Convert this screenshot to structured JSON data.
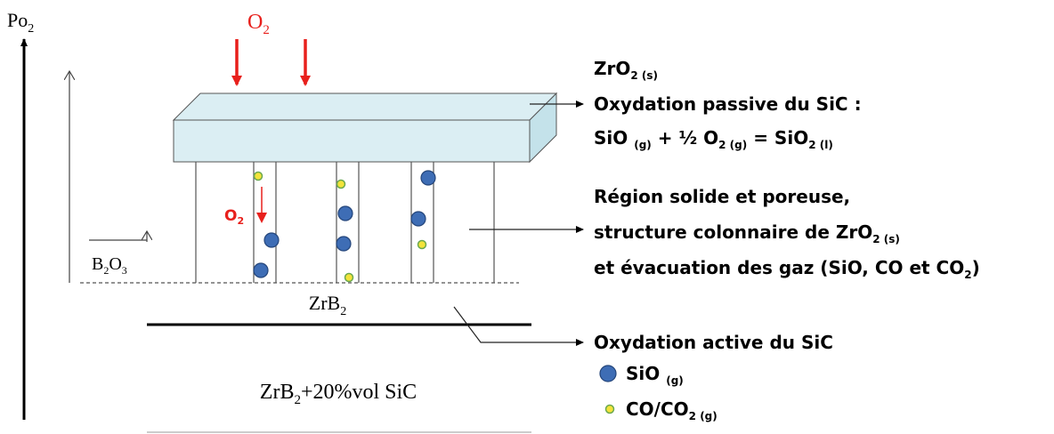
{
  "axis_label": [
    {
      "t": "Po"
    },
    {
      "t": "2",
      "sub": true
    }
  ],
  "oxygen_label": [
    {
      "t": "O"
    },
    {
      "t": "2",
      "sub": true
    }
  ],
  "inner_oxygen_label": [
    {
      "t": "O"
    },
    {
      "t": "2",
      "sub": true
    }
  ],
  "b2o3_label": [
    {
      "t": "B"
    },
    {
      "t": "2",
      "sub": true
    },
    {
      "t": "O"
    },
    {
      "t": "3",
      "sub": true
    }
  ],
  "substrate_label": [
    {
      "t": "ZrB"
    },
    {
      "t": "2",
      "sub": true
    }
  ],
  "composition_label": [
    {
      "t": "ZrB"
    },
    {
      "t": "2",
      "sub": true
    },
    {
      "t": "+20%vol SiC"
    }
  ],
  "right_text": [
    [
      {
        "t": "ZrO"
      },
      {
        "t": "2 (s)",
        "sub": true
      }
    ],
    [
      {
        "t": "Oxydation passive du SiC :"
      }
    ],
    [
      {
        "t": "SiO "
      },
      {
        "t": "(g)",
        "sub": true
      },
      {
        "t": " + ½ O"
      },
      {
        "t": "2 (g)",
        "sub": true
      },
      {
        "t": " = SiO"
      },
      {
        "t": "2 (l)",
        "sub": true
      }
    ],
    [
      {
        "t": "Région solide et poreuse,"
      }
    ],
    [
      {
        "t": "structure colonnaire de ZrO"
      },
      {
        "t": "2 (s)",
        "sub": true
      }
    ],
    [
      {
        "t": "et évacuation des gaz (SiO, CO et CO"
      },
      {
        "t": "2",
        "sub": true
      },
      {
        "t": ")"
      }
    ],
    [
      {
        "t": "Oxydation active du SiC"
      }
    ]
  ],
  "legend": [
    [
      {
        "t": "SiO "
      },
      {
        "t": "(g)",
        "sub": true
      }
    ],
    [
      {
        "t": "CO/CO"
      },
      {
        "t": "2 (g)",
        "sub": true
      }
    ]
  ]
}
